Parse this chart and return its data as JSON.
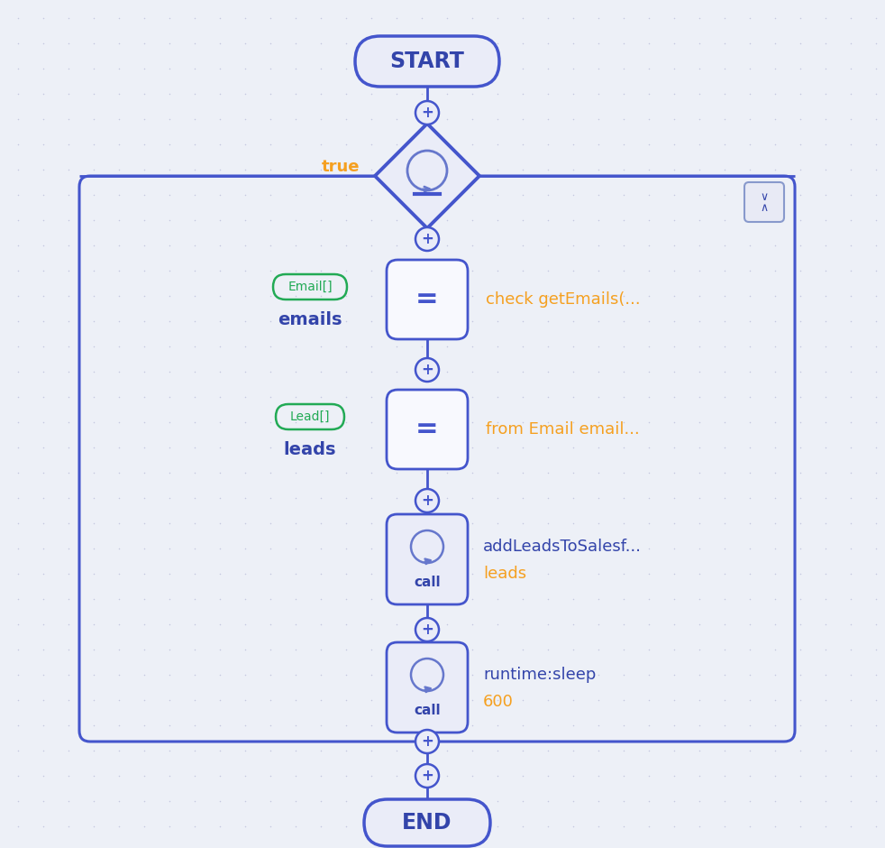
{
  "bg_color": "#edf0f7",
  "dot_color": "#c5c8df",
  "border_color": "#4455cc",
  "fill_light": "#eaecf8",
  "fill_white": "#f8f9fe",
  "orange_color": "#f5a020",
  "green_color": "#22aa55",
  "dark_blue": "#3344aa",
  "mid_blue": "#6677cc",
  "title": "START",
  "end_title": "END",
  "true_label": "true",
  "node_emails_type": "Email[]",
  "node_emails_name": "emails",
  "node_leads_type": "Lead[]",
  "node_leads_name": "leads",
  "node1_right": "check getEmails(...",
  "node2_right": "from Email email...",
  "node3_line1": "addLeadsToSalesf...",
  "node3_line2": "leads",
  "node4_line1": "runtime:sleep",
  "node4_line2": "600",
  "figw": 9.82,
  "figh": 9.4,
  "dpi": 100
}
